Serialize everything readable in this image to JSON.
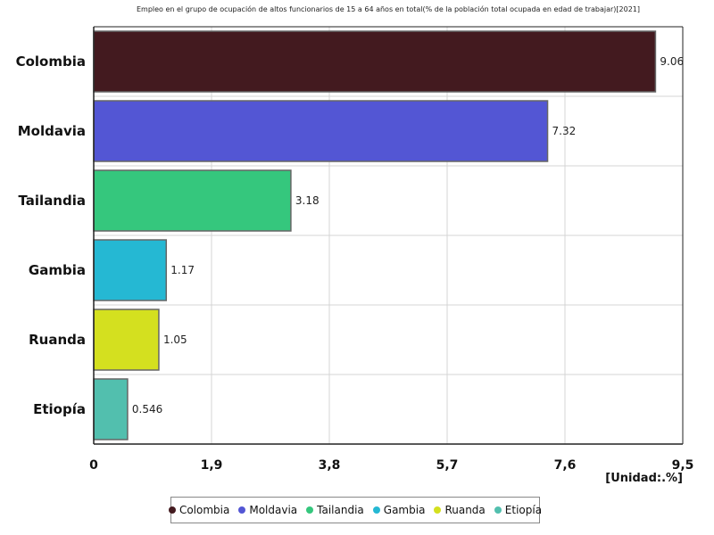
{
  "chart_data": {
    "type": "bar",
    "orientation": "horizontal",
    "title": "Empleo en el grupo de ocupación de altos funcionarios de 15 a 64 años en total(% de la población total ocupada en edad de trabajar)[2021]",
    "unit_label": "[Unidad:.%]",
    "categories": [
      "Colombia",
      "Moldavia",
      "Tailandia",
      "Gambia",
      "Ruanda",
      "Etiopía"
    ],
    "values": [
      9.06,
      7.32,
      3.18,
      1.17,
      1.05,
      0.546
    ],
    "value_labels": [
      "9.06",
      "7.32",
      "3.18",
      "1.17",
      "1.05",
      "0.546"
    ],
    "colors": [
      "#431a1f",
      "#5356d4",
      "#35c77d",
      "#25b8d3",
      "#d4e01f",
      "#52bfae"
    ],
    "xlim": [
      0,
      9.5
    ],
    "xticks": [
      0,
      1.9,
      3.8,
      5.7,
      7.6,
      9.5
    ],
    "xtick_labels": [
      "0",
      "1,9",
      "3,8",
      "5,7",
      "7,6",
      "9,5"
    ],
    "grid": true,
    "legend_position": "bottom"
  }
}
